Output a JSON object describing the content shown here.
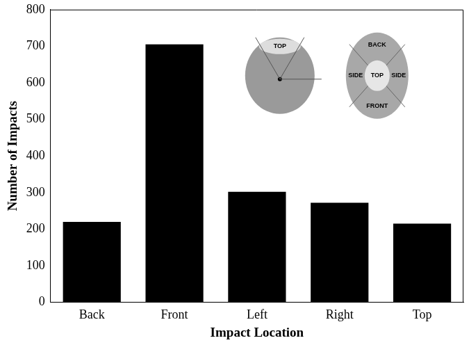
{
  "chart_data": {
    "type": "bar",
    "x_label": "Impact Location",
    "y_label": "Number of Impacts",
    "categories": [
      "Back",
      "Front",
      "Left",
      "Right",
      "Top"
    ],
    "values": [
      220,
      705,
      302,
      272,
      215
    ],
    "color": "#000000",
    "ylim": [
      0,
      800
    ],
    "yticks": [
      0,
      100,
      200,
      300,
      400,
      500,
      600,
      700,
      800
    ],
    "grid": false,
    "annotations": [
      "TOP",
      "BACK",
      "SIDE",
      "TOP",
      "SIDE",
      "FRONT"
    ]
  }
}
